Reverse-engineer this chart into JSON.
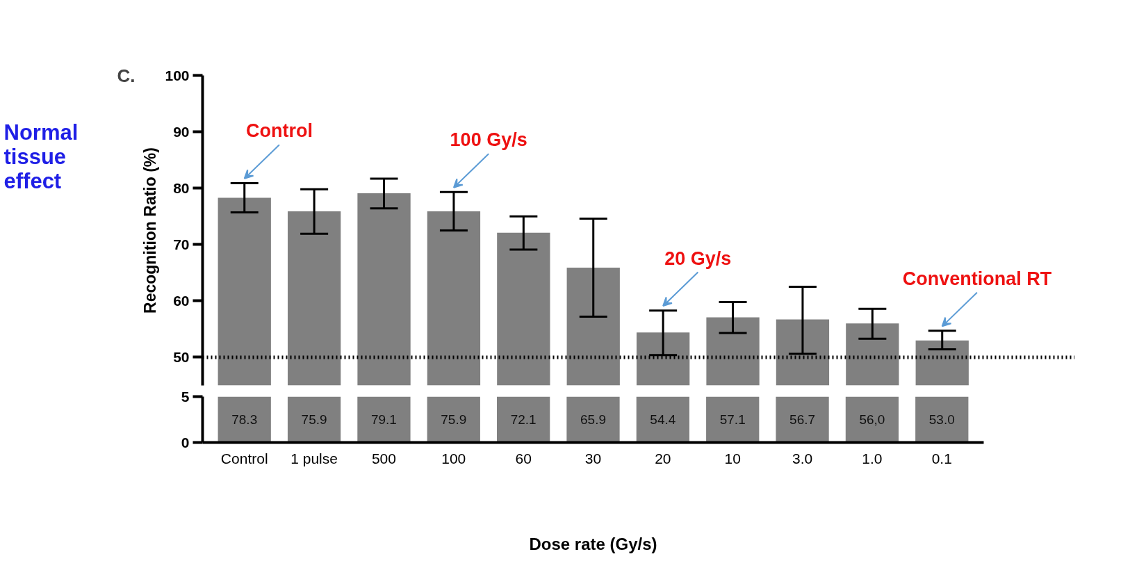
{
  "chart_data": [
    {
      "type": "other",
      "title": "Normal tissue effect",
      "annotations": [
        "C."
      ]
    },
    {
      "type": "bar",
      "ylabel": "Recognition Ratio (%)",
      "categories": [
        "Control",
        "1 pulse",
        "500",
        "100",
        "60",
        "30",
        "20",
        "10",
        "3.0",
        "1.0",
        "0.1"
      ],
      "values": [
        78.3,
        75.9,
        79.1,
        75.9,
        72.1,
        65.9,
        54.4,
        57.1,
        56.7,
        56.0,
        53.0
      ],
      "errors": [
        [
          75.7,
          80.9
        ],
        [
          71.9,
          79.8
        ],
        [
          76.4,
          81.7
        ],
        [
          72.5,
          79.3
        ],
        [
          69.1,
          75.0
        ],
        [
          57.2,
          74.6
        ],
        [
          50.4,
          58.3
        ],
        [
          54.3,
          59.8
        ],
        [
          50.6,
          62.5
        ],
        [
          53.3,
          58.6
        ],
        [
          51.4,
          54.7
        ]
      ],
      "color": "#808080",
      "ylim": [
        45,
        100
      ],
      "yticks": [
        50,
        60,
        70,
        80,
        90,
        100
      ],
      "tick_labels": "y",
      "grid": false,
      "legend": false,
      "ref_lines": [
        {
          "axis": "y",
          "value": 50,
          "color": "#000000",
          "line_style": "dotted"
        }
      ],
      "annotations": [
        {
          "text": "Control",
          "x": "Control",
          "y": 80.9
        },
        {
          "text": "100 Gy/s",
          "x": "100",
          "y": 79.3
        },
        {
          "text": "20 Gy/s",
          "x": "20",
          "y": 58.3
        },
        {
          "text": "Conventional RT",
          "x": "0.1",
          "y": 54.7
        }
      ]
    },
    {
      "type": "bar",
      "xlabel": "Dose rate (Gy/s)",
      "categories": [
        "Control",
        "1 pulse",
        "500",
        "100",
        "60",
        "30",
        "20",
        "10",
        "3.0",
        "1.0",
        "0.1"
      ],
      "value_labels": [
        "78.3",
        "75.9",
        "79.1",
        "75.9",
        "72.1",
        "65.9",
        "54.4",
        "57.1",
        "56.7",
        "56,0",
        "53.0"
      ],
      "color": "#808080",
      "ylim": [
        0,
        5
      ],
      "yticks": [
        0,
        5
      ],
      "grid": false,
      "legend": false
    }
  ]
}
